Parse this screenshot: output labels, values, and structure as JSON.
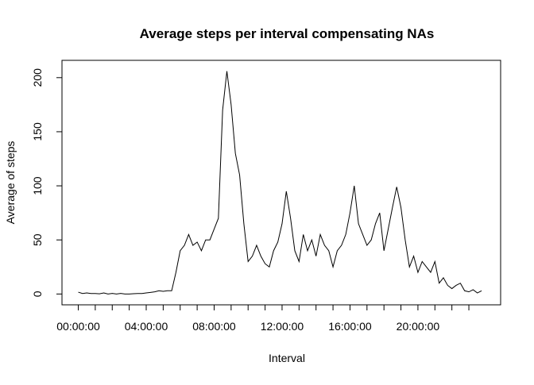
{
  "chart_data": {
    "type": "line",
    "title": "Average steps per interval compensating NAs",
    "x_label": "Interval",
    "y_label": "Average of steps",
    "x": [
      0,
      0.25,
      0.5,
      0.75,
      1,
      1.25,
      1.5,
      1.75,
      2,
      2.25,
      2.5,
      2.75,
      3,
      3.25,
      3.5,
      3.75,
      4,
      4.25,
      4.5,
      4.75,
      5,
      5.25,
      5.5,
      5.75,
      6,
      6.25,
      6.5,
      6.75,
      7,
      7.25,
      7.5,
      7.75,
      8,
      8.25,
      8.5,
      8.75,
      9,
      9.25,
      9.5,
      9.75,
      10,
      10.25,
      10.5,
      10.75,
      11,
      11.25,
      11.5,
      11.75,
      12,
      12.25,
      12.5,
      12.75,
      13,
      13.25,
      13.5,
      13.75,
      14,
      14.25,
      14.5,
      14.75,
      15,
      15.25,
      15.5,
      15.75,
      16,
      16.25,
      16.5,
      16.75,
      17,
      17.25,
      17.5,
      17.75,
      18,
      18.25,
      18.5,
      18.75,
      19,
      19.25,
      19.5,
      19.75,
      20,
      20.25,
      20.5,
      20.75,
      21,
      21.25,
      21.5,
      21.75,
      22,
      22.25,
      22.5,
      22.75,
      23,
      23.25,
      23.5,
      23.75
    ],
    "values": [
      1.7,
      0.5,
      1,
      0.5,
      0.5,
      0.2,
      1,
      0,
      0.5,
      0,
      0.5,
      0,
      0,
      0.3,
      0.5,
      0.5,
      1,
      1.5,
      2,
      3,
      2.5,
      3,
      3,
      20,
      40,
      45,
      55,
      45,
      48,
      40,
      50,
      50,
      60,
      70,
      170,
      206,
      175,
      130,
      110,
      65,
      30,
      35,
      45,
      35,
      28,
      25,
      40,
      48,
      65,
      95,
      70,
      40,
      30,
      55,
      40,
      50,
      35,
      55,
      45,
      40,
      25,
      40,
      45,
      55,
      75,
      100,
      65,
      55,
      45,
      50,
      65,
      75,
      40,
      60,
      80,
      99,
      80,
      50,
      25,
      35,
      20,
      30,
      25,
      20,
      30,
      10,
      15,
      8,
      5,
      8,
      10,
      3,
      2,
      4,
      1,
      3
    ],
    "color": "#000000",
    "xlim": [
      -0.96,
      24.87
    ],
    "xticks": [
      {
        "value": 0,
        "label": "00:00:00"
      },
      {
        "value": 4,
        "label": "04:00:00"
      },
      {
        "value": 8,
        "label": "08:00:00"
      },
      {
        "value": 12,
        "label": "12:00:00"
      },
      {
        "value": 16,
        "label": "16:00:00"
      },
      {
        "value": 20,
        "label": "20:00:00"
      }
    ],
    "xminor": [
      1,
      2,
      3,
      5,
      6,
      7,
      9,
      10,
      11,
      13,
      14,
      15,
      17,
      18,
      19,
      21,
      22,
      23
    ],
    "ylim": [
      -10,
      216
    ],
    "yticks": [
      0,
      50,
      100,
      150,
      200
    ]
  }
}
